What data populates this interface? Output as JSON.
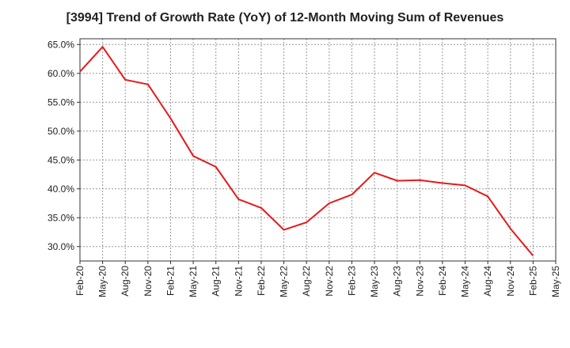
{
  "chart_data": {
    "type": "line",
    "title": "[3994]  Trend of Growth Rate (YoY) of 12-Month Moving Sum of Revenues",
    "xlabel": "",
    "ylabel": "",
    "ylim": [
      27.5,
      66.0
    ],
    "grid": true,
    "x_ticks": [
      "Feb-20",
      "May-20",
      "Aug-20",
      "Nov-20",
      "Feb-21",
      "May-21",
      "Aug-21",
      "Nov-21",
      "Feb-22",
      "May-22",
      "Aug-22",
      "Nov-22",
      "Feb-23",
      "May-23",
      "Aug-23",
      "Nov-23",
      "Feb-24",
      "May-24",
      "Aug-24",
      "Nov-24",
      "Feb-25",
      "May-25"
    ],
    "y_ticks": [
      30,
      35,
      40,
      45,
      50,
      55,
      60,
      65
    ],
    "y_tick_labels": [
      "30.0%",
      "35.0%",
      "40.0%",
      "45.0%",
      "50.0%",
      "55.0%",
      "60.0%",
      "65.0%"
    ],
    "series": [
      {
        "color": "#e8191b",
        "x": [
          "Feb-20",
          "May-20",
          "Aug-20",
          "Nov-20",
          "Feb-21",
          "May-21",
          "Aug-21",
          "Nov-21",
          "Feb-22",
          "May-22",
          "Aug-22",
          "Nov-22",
          "Feb-23",
          "May-23",
          "Aug-23",
          "Nov-23",
          "Feb-24",
          "May-24",
          "Aug-24",
          "Nov-24",
          "Feb-25"
        ],
        "values": [
          60.3,
          64.6,
          58.9,
          58.1,
          52.2,
          45.7,
          43.8,
          38.2,
          36.7,
          32.9,
          34.2,
          37.5,
          39.0,
          42.8,
          41.4,
          41.5,
          41.0,
          40.6,
          38.7,
          33.1,
          28.4
        ]
      }
    ]
  }
}
